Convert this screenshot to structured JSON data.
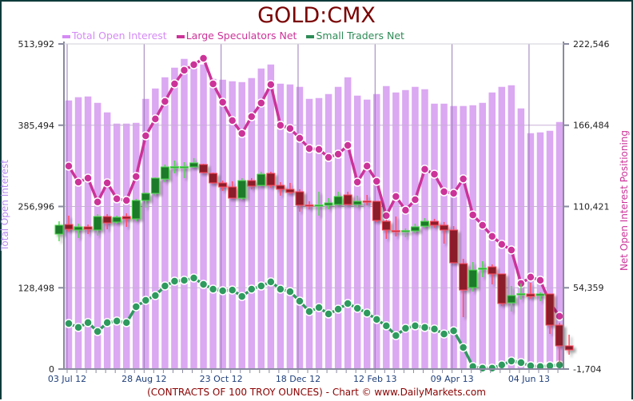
{
  "chart_data": {
    "type": "bar+line+candlestick",
    "title": "GOLD:CMX",
    "footer": "(CONTRACTS OF 100 TROY OUNCES)  - Chart © www.DailyMarkets.com",
    "ylabel_left": "Total Open Interest",
    "ylabel_right": "Net Open Interest Positioning",
    "legend_position": "top",
    "grid": true,
    "units": "thousands of contracts",
    "y_left": {
      "range": [
        0,
        513.992
      ],
      "ticks": [
        "0",
        "128,498",
        "256,996",
        "385,494",
        "513,992"
      ],
      "tick_values": [
        0,
        128.498,
        256.996,
        385.494,
        513.992
      ]
    },
    "y_right": {
      "range": [
        -1.704,
        222.546
      ],
      "ticks": [
        "-1,704",
        "54,359",
        "110,421",
        "166,484",
        "222,546"
      ],
      "tick_values": [
        -1.704,
        54.359,
        110.421,
        166.484,
        222.546
      ]
    },
    "x_tick_labels": [
      {
        "index": 0,
        "label": "03 Jul 12"
      },
      {
        "index": 8,
        "label": "28 Aug 12"
      },
      {
        "index": 16,
        "label": "23 Oct 12"
      },
      {
        "index": 24,
        "label": "18 Dec 12"
      },
      {
        "index": 32,
        "label": "12 Feb 13"
      },
      {
        "index": 40,
        "label": "09 Apr 13"
      },
      {
        "index": 48,
        "label": "04 Jun 13"
      }
    ],
    "weeks": 52,
    "series": [
      {
        "name": "Total Open Interest",
        "type": "bar",
        "axis": "left",
        "color": "#dba8f2",
        "legend_color": "#d58af5",
        "values": [
          425.6,
          430.7,
          431.9,
          421.8,
          406.7,
          389.0,
          389.0,
          390.2,
          428.1,
          444.5,
          462.2,
          477.4,
          491.3,
          487.5,
          482.4,
          459.7,
          458.4,
          455.9,
          454.6,
          461.0,
          476.1,
          482.4,
          452.1,
          450.9,
          447.1,
          428.1,
          429.4,
          435.7,
          447.1,
          462.2,
          433.2,
          426.9,
          435.7,
          448.3,
          438.2,
          442.0,
          447.1,
          443.3,
          420.5,
          420.5,
          416.8,
          416.8,
          418.0,
          421.8,
          438.2,
          447.1,
          449.6,
          413.0,
          373.8,
          375.1,
          377.6,
          391.5
        ]
      },
      {
        "name": "Large Speculators Net",
        "type": "line",
        "axis": "right",
        "color": "#cc3399",
        "values": [
          138.3,
          127.2,
          130.0,
          113.5,
          126.7,
          115.7,
          114.6,
          131.1,
          159.2,
          170.8,
          182.9,
          195.0,
          204.4,
          208.2,
          212.6,
          195.0,
          182.3,
          169.7,
          160.8,
          172.4,
          181.8,
          194.5,
          166.4,
          164.2,
          157.5,
          150.4,
          149.8,
          144.3,
          146.5,
          152.6,
          127.2,
          138.3,
          127.8,
          104.1,
          117.3,
          107.9,
          115.1,
          136.1,
          132.7,
          120.6,
          119.5,
          129.4,
          104.6,
          97.5,
          89.8,
          84.3,
          80.4,
          57.3,
          61.7,
          59.5,
          44.0,
          34.7
        ]
      },
      {
        "name": "Small Traders Net",
        "type": "line",
        "axis": "right",
        "color": "#2e9a5e",
        "values": [
          29.7,
          27.0,
          30.3,
          24.2,
          30.3,
          31.4,
          30.3,
          41.3,
          45.7,
          49.0,
          55.6,
          58.9,
          59.5,
          61.1,
          56.7,
          53.4,
          52.3,
          52.8,
          48.4,
          53.4,
          55.6,
          58.4,
          53.4,
          51.7,
          45.1,
          38.0,
          40.7,
          36.3,
          39.6,
          43.5,
          40.2,
          36.9,
          32.5,
          28.1,
          21.4,
          26.4,
          28.1,
          27.0,
          25.9,
          22.5,
          24.7,
          13.2,
          0.0,
          -1.1,
          -1.1,
          1.1,
          3.8,
          2.7,
          0.5,
          0.0,
          0.5,
          1.1
        ]
      }
    ],
    "price_candles": {
      "axis": "right",
      "up_color": "#1f7a2a",
      "down_color": "#8b1a2b",
      "start_index": -1,
      "ohlc": [
        [
          91.4,
          100.2,
          86.5,
          97.5
        ],
        [
          98.0,
          104.1,
          93.1,
          94.7
        ],
        [
          94.2,
          98.6,
          88.7,
          96.4
        ],
        [
          96.4,
          98.0,
          91.4,
          94.7
        ],
        [
          94.2,
          105.2,
          90.3,
          103.5
        ],
        [
          103.5,
          105.2,
          94.7,
          99.1
        ],
        [
          99.7,
          104.1,
          98.6,
          103.0
        ],
        [
          103.5,
          105.7,
          96.4,
          101.9
        ],
        [
          101.9,
          115.7,
          100.2,
          114.6
        ],
        [
          114.6,
          120.1,
          109.6,
          119.5
        ],
        [
          119.5,
          130.5,
          117.9,
          130.0
        ],
        [
          129.4,
          139.4,
          127.2,
          137.7
        ],
        [
          137.5,
          142.1,
          133.3,
          137.9
        ],
        [
          137.5,
          141.0,
          130.0,
          137.9
        ],
        [
          137.7,
          143.8,
          137.2,
          140.5
        ],
        [
          139.4,
          139.9,
          133.3,
          133.8
        ],
        [
          133.3,
          133.8,
          126.1,
          126.7
        ],
        [
          126.7,
          128.3,
          121.2,
          123.9
        ],
        [
          123.9,
          127.8,
          116.2,
          116.2
        ],
        [
          116.2,
          130.0,
          115.1,
          128.3
        ],
        [
          128.3,
          130.0,
          122.3,
          124.5
        ],
        [
          125.0,
          134.4,
          124.5,
          132.7
        ],
        [
          133.3,
          134.4,
          123.4,
          125.0
        ],
        [
          125.0,
          127.2,
          117.9,
          122.3
        ],
        [
          122.3,
          126.7,
          119.0,
          120.1
        ],
        [
          120.6,
          122.3,
          106.8,
          111.3
        ],
        [
          111.5,
          114.0,
          108.5,
          111.1
        ],
        [
          111.1,
          120.6,
          104.1,
          111.5
        ],
        [
          111.3,
          116.2,
          108.5,
          112.9
        ],
        [
          111.8,
          120.6,
          111.3,
          117.3
        ],
        [
          118.4,
          120.6,
          111.3,
          111.8
        ],
        [
          111.8,
          117.9,
          109.6,
          114.0
        ],
        [
          114.2,
          118.4,
          111.3,
          113.8
        ],
        [
          114.0,
          114.0,
          99.7,
          100.8
        ],
        [
          100.2,
          101.3,
          88.1,
          94.2
        ],
        [
          93.8,
          103.5,
          89.8,
          93.4
        ],
        [
          93.4,
          95.3,
          89.2,
          93.8
        ],
        [
          93.6,
          98.6,
          92.0,
          96.4
        ],
        [
          96.9,
          102.4,
          95.8,
          100.2
        ],
        [
          100.2,
          101.9,
          95.8,
          97.5
        ],
        [
          97.5,
          99.7,
          84.8,
          94.2
        ],
        [
          94.2,
          96.9,
          71.0,
          71.6
        ],
        [
          71.0,
          74.3,
          34.1,
          52.8
        ],
        [
          54.5,
          72.1,
          51.7,
          66.6
        ],
        [
          67.5,
          72.7,
          61.7,
          67.9
        ],
        [
          68.8,
          70.5,
          56.7,
          63.9
        ],
        [
          63.9,
          63.9,
          41.8,
          43.5
        ],
        [
          44.0,
          55.6,
          38.0,
          49.0
        ],
        [
          49.9,
          57.3,
          46.2,
          50.3
        ],
        [
          50.1,
          57.8,
          46.8,
          48.4
        ],
        [
          49.0,
          51.2,
          45.1,
          50.1
        ],
        [
          50.1,
          50.1,
          22.5,
          28.6
        ],
        [
          28.6,
          30.3,
          2.2,
          14.3
        ],
        [
          14.3,
          22.0,
          8.2,
          11.5
        ]
      ]
    }
  }
}
